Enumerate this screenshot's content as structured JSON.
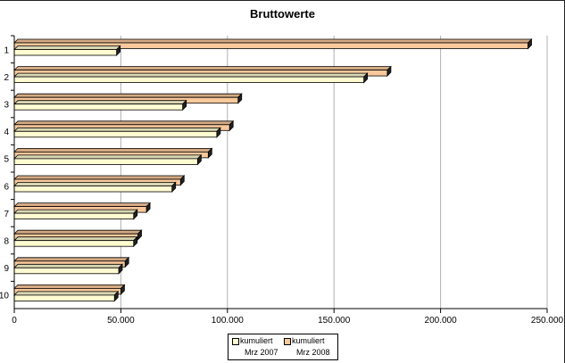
{
  "chart_data": {
    "type": "bar",
    "orientation": "horizontal",
    "title": "Bruttowerte",
    "categories": [
      "1",
      "2",
      "3",
      "4",
      "5",
      "6",
      "7",
      "8",
      "9",
      "10"
    ],
    "series": [
      {
        "name": "kumuliert Mrz 2008",
        "color": "#f9c89b",
        "values": [
          241000,
          175000,
          105000,
          101000,
          91000,
          78000,
          62000,
          58000,
          52000,
          50000
        ]
      },
      {
        "name": "kumuliert Mrz 2007",
        "color": "#fffcd2",
        "values": [
          48000,
          164000,
          79000,
          95000,
          86000,
          74000,
          56000,
          56000,
          49000,
          47000
        ]
      }
    ],
    "xlim": [
      0,
      250000
    ],
    "xticks": [
      0,
      50000,
      100000,
      150000,
      200000,
      250000
    ],
    "xtick_labels": [
      "0",
      "50.000",
      "100.000",
      "150.000",
      "200.000",
      "250.000"
    ],
    "grid": true,
    "legend_position": "bottom",
    "legend": [
      {
        "line1": "kumuliert",
        "line2": "Mrz 2007",
        "color": "#fffcd2"
      },
      {
        "line1": "kumuliert",
        "line2": "Mrz 2008",
        "color": "#f9c89b"
      }
    ]
  }
}
